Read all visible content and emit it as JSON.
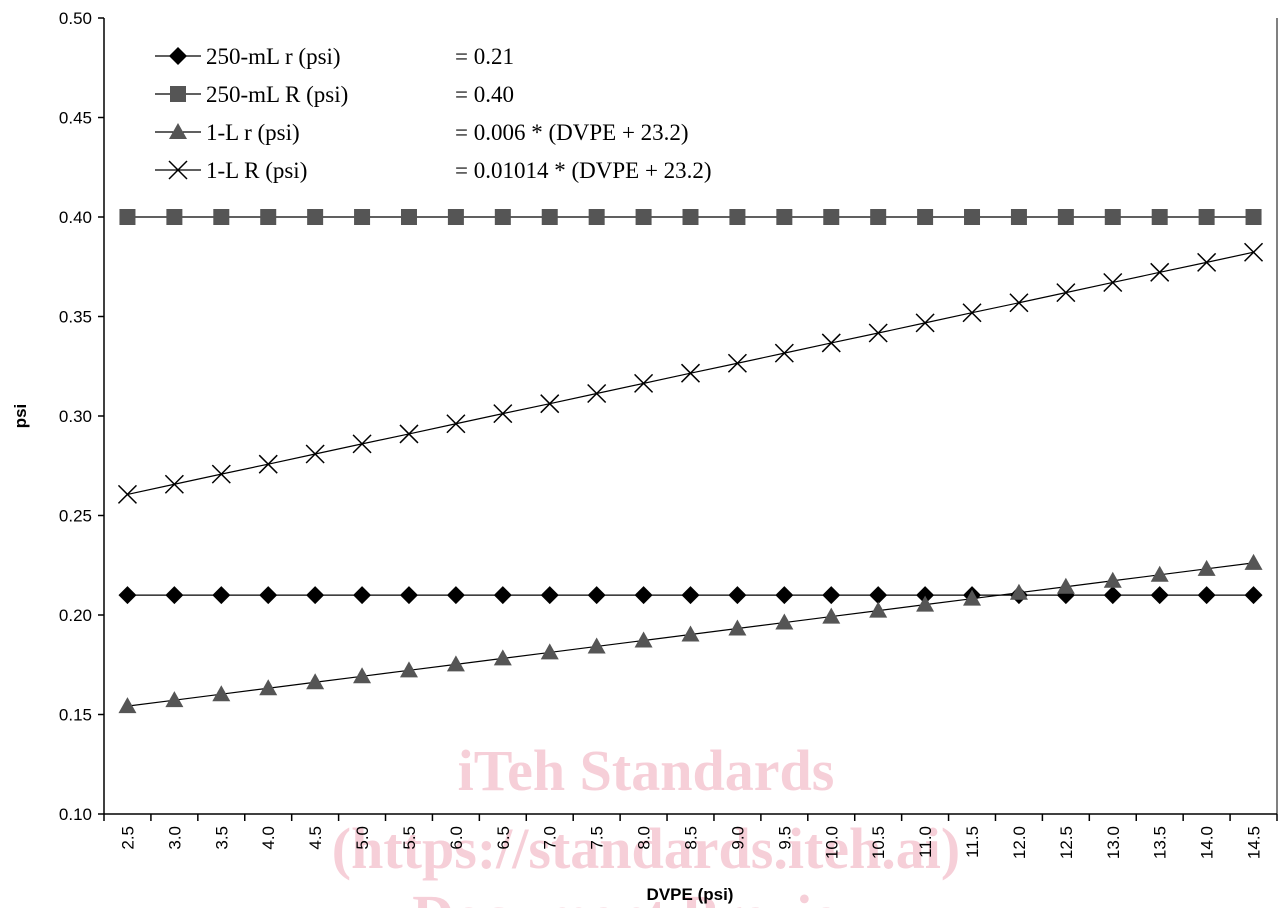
{
  "chart_data": {
    "type": "line",
    "xlabel": "DVPE (psi)",
    "ylabel": "psi",
    "ylim": [
      0.1,
      0.5
    ],
    "yticks": [
      "0.10",
      "0.15",
      "0.20",
      "0.25",
      "0.30",
      "0.35",
      "0.40",
      "0.45",
      "0.50"
    ],
    "categories": [
      "2.5",
      "3.0",
      "3.5",
      "4.0",
      "4.5",
      "5.0",
      "5.5",
      "6.0",
      "6.5",
      "7.0",
      "7.5",
      "8.0",
      "8.5",
      "9.0",
      "9.5",
      "10.0",
      "10.5",
      "11.0",
      "11.5",
      "12.0",
      "12.5",
      "13.0",
      "13.5",
      "14.0",
      "14.5"
    ],
    "grid": false,
    "legend_position": "top-left",
    "series": [
      {
        "name": "250-mL r (psi)",
        "formula": "= 0.21",
        "marker": "diamond",
        "color": "#000000",
        "values": [
          0.21,
          0.21,
          0.21,
          0.21,
          0.21,
          0.21,
          0.21,
          0.21,
          0.21,
          0.21,
          0.21,
          0.21,
          0.21,
          0.21,
          0.21,
          0.21,
          0.21,
          0.21,
          0.21,
          0.21,
          0.21,
          0.21,
          0.21,
          0.21,
          0.21
        ]
      },
      {
        "name": "250-mL R (psi)",
        "formula": "= 0.40",
        "marker": "square",
        "color": "#555555",
        "values": [
          0.4,
          0.4,
          0.4,
          0.4,
          0.4,
          0.4,
          0.4,
          0.4,
          0.4,
          0.4,
          0.4,
          0.4,
          0.4,
          0.4,
          0.4,
          0.4,
          0.4,
          0.4,
          0.4,
          0.4,
          0.4,
          0.4,
          0.4,
          0.4,
          0.4
        ]
      },
      {
        "name": "1-L r (psi)",
        "formula": "= 0.006 * (DVPE + 23.2)",
        "marker": "triangle",
        "color": "#555555",
        "values": [
          0.1542,
          0.1572,
          0.1602,
          0.1632,
          0.1662,
          0.1692,
          0.1722,
          0.1752,
          0.1782,
          0.1812,
          0.1842,
          0.1872,
          0.1902,
          0.1932,
          0.1962,
          0.1992,
          0.2022,
          0.2052,
          0.2082,
          0.2112,
          0.2142,
          0.2172,
          0.2202,
          0.2232,
          0.2262
        ]
      },
      {
        "name": "1-L R (psi)",
        "formula": "= 0.01014 * (DVPE + 23.2)",
        "marker": "x",
        "color": "#000000",
        "values": [
          0.2606,
          0.2657,
          0.2708,
          0.2758,
          0.2809,
          0.286,
          0.291,
          0.2961,
          0.3012,
          0.3062,
          0.3113,
          0.3164,
          0.3215,
          0.3265,
          0.3316,
          0.3367,
          0.3417,
          0.3468,
          0.3519,
          0.3569,
          0.362,
          0.3671,
          0.3722,
          0.3772,
          0.3823
        ]
      }
    ]
  },
  "watermark": {
    "line1": "iTeh Standards",
    "line2": "(https://standards.iteh.ai)",
    "line3": "Document Preview"
  }
}
